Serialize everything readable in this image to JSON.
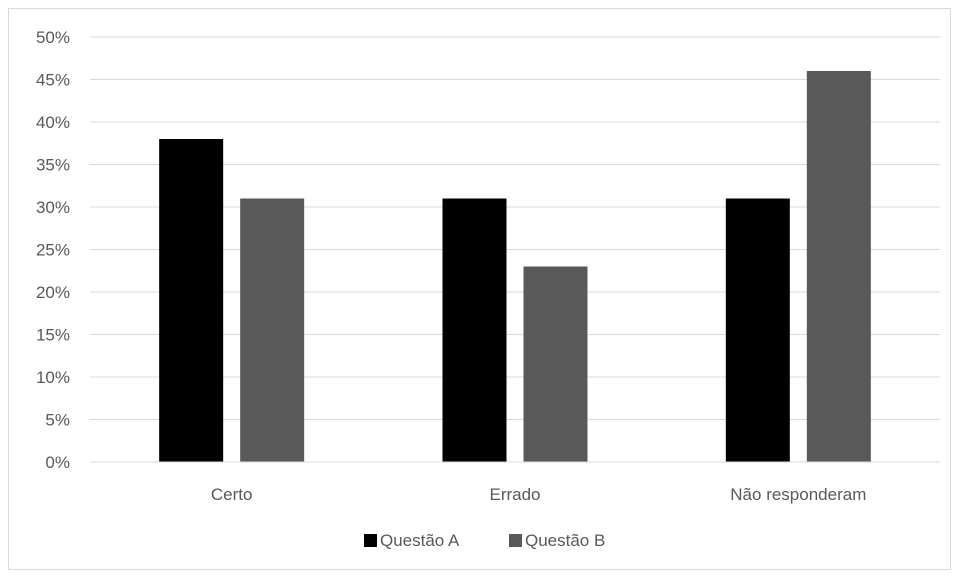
{
  "chart_data": {
    "type": "bar",
    "categories": [
      "Certo",
      "Errado",
      "Não responderam"
    ],
    "series": [
      {
        "name": "Questão A",
        "values": [
          38,
          31,
          31
        ],
        "color": "#000000"
      },
      {
        "name": "Questão B",
        "values": [
          31,
          23,
          46
        ],
        "color": "#595959"
      }
    ],
    "y_ticks": [
      "0%",
      "5%",
      "10%",
      "15%",
      "20%",
      "25%",
      "30%",
      "35%",
      "40%",
      "45%",
      "50%"
    ],
    "ylim": [
      0,
      50
    ],
    "y_unit": "%",
    "grid": true,
    "legend_position": "bottom",
    "title": "",
    "xlabel": "",
    "ylabel": ""
  }
}
